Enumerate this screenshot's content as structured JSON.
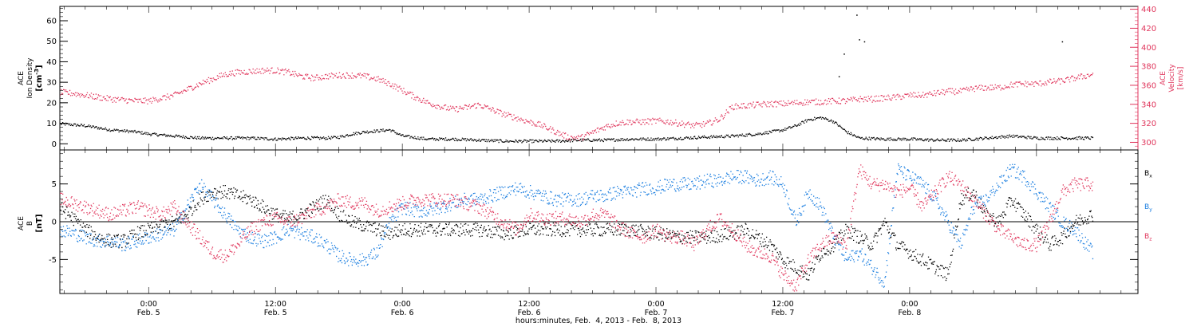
{
  "colors": {
    "black": "#000000",
    "red": "#e0365c",
    "blue": "#1a7ee0"
  },
  "chart_data": [
    {
      "type": "scatter",
      "name": "top-panel",
      "left_axis": {
        "label_lines": [
          "ACE",
          "Ion Density"
        ],
        "unit_prefix": "[cm",
        "unit_sup": "-3",
        "unit_suffix": "]",
        "ticks": [
          0,
          10,
          20,
          30,
          40,
          50,
          60
        ],
        "ylim": [
          -3,
          67
        ]
      },
      "right_axis": {
        "label_lines": [
          "ACE",
          "Velocity",
          "[km/s]"
        ],
        "ticks": [
          300,
          320,
          340,
          360,
          380,
          400,
          420,
          440
        ],
        "ylim": [
          292,
          443
        ]
      },
      "series": [
        {
          "color": "black",
          "axis": "left",
          "x": [
            -0.35,
            -0.3,
            -0.25,
            -0.2,
            -0.15,
            -0.1,
            -0.05,
            0.0,
            0.1,
            0.2,
            0.3,
            0.4,
            0.5,
            0.6,
            0.7,
            0.75,
            0.8,
            0.85,
            0.9,
            0.95,
            1.0,
            1.1,
            1.2,
            1.3,
            1.4,
            1.5,
            1.6,
            1.7,
            1.8,
            1.9,
            2.0,
            2.1,
            2.2,
            2.3,
            2.4,
            2.45,
            2.5,
            2.55,
            2.6,
            2.65,
            2.7,
            2.75,
            2.8,
            2.9,
            3.0,
            3.1,
            3.2,
            3.3,
            3.4,
            3.5,
            3.6,
            3.72
          ],
          "y": [
            10,
            9.5,
            9,
            8,
            7,
            6.5,
            6,
            5,
            4,
            3,
            3,
            3,
            2.5,
            3,
            3,
            3.5,
            5,
            6,
            6.5,
            7,
            4,
            2.5,
            2.5,
            2,
            1.5,
            1.5,
            1.5,
            2,
            2,
            2.5,
            2.5,
            3,
            3.5,
            4,
            5,
            6,
            7,
            9,
            12,
            13,
            11,
            6,
            3,
            2.5,
            2.5,
            2,
            2,
            3,
            4,
            3,
            3,
            3
          ]
        },
        {
          "color": "red",
          "axis": "right",
          "x": [
            -0.35,
            -0.3,
            -0.25,
            -0.2,
            -0.15,
            -0.1,
            -0.05,
            0.0,
            0.05,
            0.1,
            0.15,
            0.2,
            0.25,
            0.3,
            0.35,
            0.4,
            0.45,
            0.5,
            0.55,
            0.6,
            0.65,
            0.7,
            0.75,
            0.8,
            0.85,
            0.9,
            0.95,
            1.0,
            1.05,
            1.1,
            1.15,
            1.2,
            1.25,
            1.3,
            1.35,
            1.4,
            1.45,
            1.5,
            1.55,
            1.6,
            1.65,
            1.7,
            1.75,
            1.8,
            1.85,
            1.9,
            1.95,
            2.0,
            2.05,
            2.1,
            2.15,
            2.2,
            2.25,
            2.3,
            2.35,
            2.4,
            2.45,
            2.5,
            2.55,
            2.6,
            2.65,
            2.7,
            2.75,
            2.8,
            2.85,
            2.9,
            2.95,
            3.0,
            3.05,
            3.1,
            3.15,
            3.2,
            3.25,
            3.3,
            3.35,
            3.4,
            3.45,
            3.5,
            3.55,
            3.6,
            3.65,
            3.72
          ],
          "y": [
            353,
            352,
            350,
            348,
            346,
            345,
            344,
            344,
            347,
            350,
            356,
            362,
            367,
            372,
            374,
            375,
            376,
            376,
            374,
            370,
            368,
            370,
            371,
            371,
            370,
            367,
            362,
            355,
            348,
            342,
            338,
            335,
            337,
            340,
            335,
            330,
            326,
            322,
            318,
            312,
            306,
            305,
            311,
            317,
            321,
            322,
            322,
            323,
            322,
            320,
            318,
            320,
            325,
            338,
            339,
            340,
            341,
            341,
            342,
            343,
            343,
            344,
            344,
            346,
            346,
            347,
            348,
            350,
            350,
            352,
            354,
            354,
            357,
            358,
            358,
            361,
            362,
            362,
            364,
            365,
            368,
            372
          ]
        }
      ],
      "grid": false
    },
    {
      "type": "scatter",
      "name": "bottom-panel",
      "y_axis": {
        "label_lines": [
          "ACE",
          "B",
          "[nT]"
        ],
        "ticks": [
          -5,
          0,
          5
        ],
        "ylim": [
          -9.5,
          9.5
        ]
      },
      "zero_line": true,
      "series": [
        {
          "name": "Bx",
          "name_base": "B",
          "name_sub": "x",
          "color": "black",
          "x": [
            -0.35,
            -0.3,
            -0.25,
            -0.2,
            -0.15,
            -0.1,
            -0.05,
            0.0,
            0.05,
            0.1,
            0.15,
            0.2,
            0.25,
            0.3,
            0.35,
            0.4,
            0.45,
            0.5,
            0.55,
            0.6,
            0.65,
            0.7,
            0.75,
            0.8,
            0.85,
            0.9,
            0.95,
            1.0,
            1.1,
            1.2,
            1.3,
            1.4,
            1.5,
            1.6,
            1.7,
            1.8,
            1.9,
            2.0,
            2.1,
            2.2,
            2.3,
            2.35,
            2.4,
            2.45,
            2.5,
            2.55,
            2.6,
            2.65,
            2.7,
            2.75,
            2.8,
            2.85,
            2.9,
            2.95,
            3.0,
            3.05,
            3.1,
            3.15,
            3.2,
            3.25,
            3.3,
            3.35,
            3.4,
            3.45,
            3.5,
            3.55,
            3.6,
            3.65,
            3.72
          ],
          "y": [
            2,
            0.5,
            -1,
            -2,
            -2.5,
            -2.5,
            -1.5,
            -1,
            -0.5,
            0,
            1,
            3,
            4,
            4,
            3.5,
            3,
            2,
            1,
            0.5,
            1,
            2,
            3,
            1,
            0,
            -0.5,
            -1,
            -1.5,
            -1,
            -1,
            -1,
            -1,
            -1.5,
            -1,
            -1,
            -1,
            -1,
            -1,
            -1.5,
            -2,
            -2,
            -1.5,
            -1,
            -2,
            -3,
            -5,
            -6,
            -7,
            -4,
            -3,
            -1,
            -2,
            -3,
            0,
            -3,
            -4,
            -5,
            -6,
            -7,
            3,
            4,
            1,
            0,
            3,
            1,
            -1,
            -3,
            -2,
            0,
            1
          ]
        },
        {
          "name": "By",
          "name_base": "B",
          "name_sub": "y",
          "color": "blue",
          "x": [
            -0.35,
            -0.3,
            -0.25,
            -0.2,
            -0.15,
            -0.1,
            -0.05,
            0.0,
            0.05,
            0.1,
            0.15,
            0.2,
            0.25,
            0.3,
            0.35,
            0.4,
            0.45,
            0.5,
            0.55,
            0.6,
            0.65,
            0.7,
            0.75,
            0.8,
            0.85,
            0.9,
            0.95,
            1.0,
            1.05,
            1.1,
            1.15,
            1.2,
            1.25,
            1.3,
            1.35,
            1.4,
            1.45,
            1.5,
            1.55,
            1.6,
            1.65,
            1.7,
            1.75,
            1.8,
            1.85,
            1.9,
            1.95,
            2.0,
            2.05,
            2.1,
            2.15,
            2.2,
            2.25,
            2.3,
            2.35,
            2.4,
            2.45,
            2.5,
            2.55,
            2.6,
            2.65,
            2.7,
            2.75,
            2.8,
            2.85,
            2.9,
            2.95,
            3.0,
            3.05,
            3.1,
            3.15,
            3.2,
            3.25,
            3.3,
            3.35,
            3.4,
            3.45,
            3.5,
            3.55,
            3.6,
            3.65,
            3.72
          ],
          "y": [
            -1,
            -1.5,
            -2,
            -2.5,
            -2.5,
            -3,
            -2.5,
            -2,
            -1.5,
            -1,
            2,
            5,
            3,
            1,
            -1,
            -2,
            -2.5,
            -2,
            -1,
            -1.5,
            -2,
            -3,
            -4.5,
            -5,
            -5,
            -4,
            0,
            2,
            1.5,
            1.5,
            2,
            2.5,
            3,
            3,
            3.5,
            4,
            4.5,
            4,
            3.5,
            3,
            3,
            3,
            3.5,
            3.5,
            4,
            4,
            4.5,
            4.5,
            5,
            5,
            5,
            5.5,
            5.5,
            6,
            6,
            5.5,
            6,
            5,
            0,
            4,
            2,
            -2,
            -5,
            -4,
            -6,
            -8,
            7,
            6,
            5,
            3,
            0,
            -3,
            2,
            3,
            5,
            7,
            6,
            4,
            2,
            0,
            -1,
            -4
          ]
        },
        {
          "name": "Bz",
          "name_base": "B",
          "name_sub": "z",
          "color": "red",
          "x": [
            -0.35,
            -0.3,
            -0.25,
            -0.2,
            -0.15,
            -0.1,
            -0.05,
            0.0,
            0.05,
            0.1,
            0.15,
            0.2,
            0.25,
            0.3,
            0.35,
            0.4,
            0.45,
            0.5,
            0.55,
            0.6,
            0.65,
            0.7,
            0.75,
            0.8,
            0.85,
            0.9,
            0.95,
            1.0,
            1.05,
            1.1,
            1.15,
            1.2,
            1.25,
            1.3,
            1.35,
            1.4,
            1.45,
            1.5,
            1.55,
            1.6,
            1.65,
            1.7,
            1.75,
            1.8,
            1.85,
            1.9,
            1.95,
            2.0,
            2.05,
            2.1,
            2.15,
            2.2,
            2.25,
            2.3,
            2.35,
            2.4,
            2.45,
            2.5,
            2.55,
            2.6,
            2.65,
            2.7,
            2.75,
            2.8,
            2.85,
            2.9,
            2.95,
            3.0,
            3.05,
            3.1,
            3.15,
            3.2,
            3.25,
            3.3,
            3.35,
            3.4,
            3.45,
            3.5,
            3.55,
            3.6,
            3.65,
            3.72
          ],
          "y": [
            3,
            2.5,
            2,
            1.5,
            1,
            1.5,
            2,
            1.5,
            1,
            2,
            0,
            -2,
            -4,
            -4.5,
            -3,
            -1,
            0,
            0.5,
            0,
            0.5,
            1.5,
            2,
            3,
            2.5,
            2.5,
            1.5,
            2,
            2.5,
            3,
            3,
            3,
            3,
            2.5,
            2,
            1,
            0,
            -1,
            1,
            0.5,
            0.5,
            0.5,
            0,
            1,
            1,
            -0.5,
            -1.5,
            -2,
            -1,
            -2,
            -2,
            -3,
            -1,
            0.5,
            -1,
            -3,
            -4,
            -4.5,
            -7,
            -8.5,
            -5,
            -3,
            -2,
            -3,
            7,
            5,
            5,
            4,
            4.5,
            2,
            4,
            6,
            5,
            3,
            1,
            -1,
            -2,
            -3,
            -3,
            0,
            4,
            5,
            5
          ]
        }
      ],
      "grid": false
    }
  ],
  "x_axis": {
    "min": -0.35,
    "max": 3.9,
    "ticks": [
      {
        "at": 0.0,
        "time": "0:00",
        "date": "Feb. 5"
      },
      {
        "at": 0.5,
        "time": "12:00",
        "date": "Feb. 5"
      },
      {
        "at": 1.0,
        "time": "0:00",
        "date": "Feb. 6"
      },
      {
        "at": 1.5,
        "time": "12:00",
        "date": "Feb. 6"
      },
      {
        "at": 2.0,
        "time": "0:00",
        "date": "Feb. 7"
      },
      {
        "at": 2.5,
        "time": "12:00",
        "date": "Feb. 7"
      },
      {
        "at": 3.0,
        "time": "0:00",
        "date": "Feb. 8"
      }
    ],
    "xlabel": "hours:minutes, Feb.  4, 2013 - Feb.  8, 2013"
  }
}
